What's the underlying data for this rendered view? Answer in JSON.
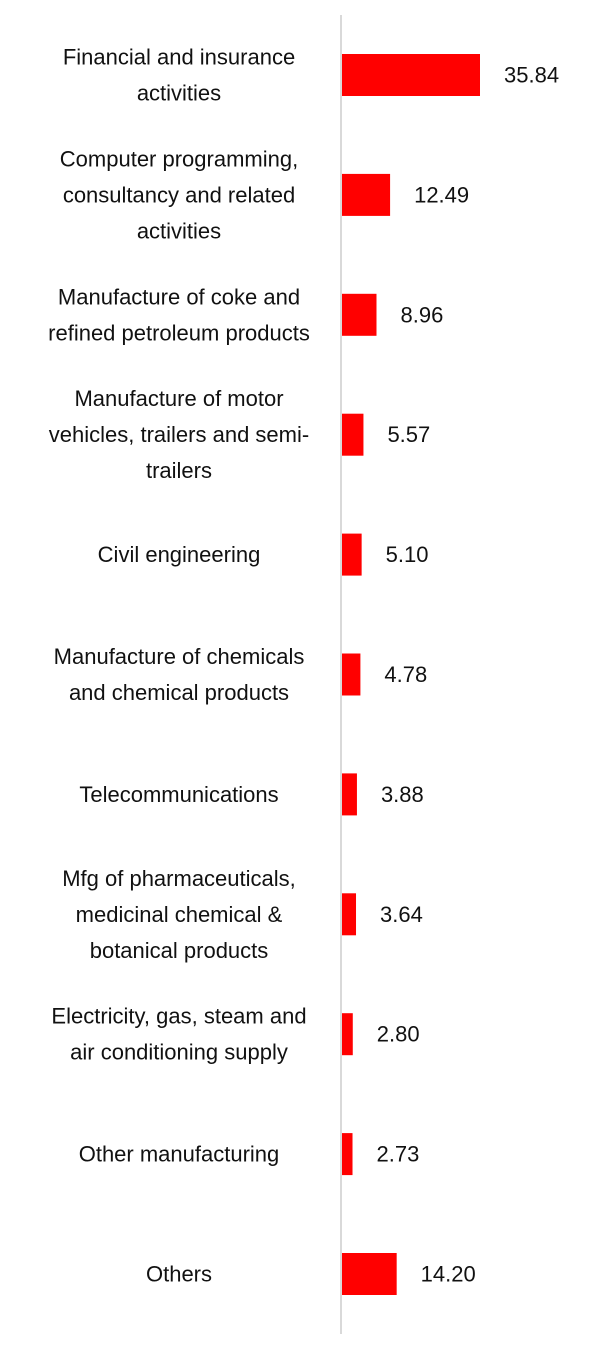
{
  "chart_data": {
    "type": "bar",
    "orientation": "horizontal",
    "categories": [
      "Financial and insurance activities",
      "Computer programming, consultancy and related activities",
      "Manufacture of coke and refined petroleum products",
      "Manufacture of motor vehicles, trailers and semi-trailers",
      "Civil engineering",
      "Manufacture of chemicals and chemical products",
      "Telecommunications",
      "Mfg of pharmaceuticals, medicinal chemical & botanical products",
      "Electricity, gas, steam and air conditioning supply",
      "Other manufacturing",
      "Others"
    ],
    "category_label_lines": [
      [
        "Financial and insurance",
        "activities"
      ],
      [
        "Computer programming,",
        "consultancy and related",
        "activities"
      ],
      [
        "Manufacture of coke and",
        "refined petroleum products"
      ],
      [
        "Manufacture of motor",
        "vehicles, trailers and semi-",
        "trailers"
      ],
      [
        "Civil engineering"
      ],
      [
        "Manufacture of chemicals",
        "and chemical products"
      ],
      [
        "Telecommunications"
      ],
      [
        "Mfg of pharmaceuticals,",
        "medicinal chemical &",
        "botanical products"
      ],
      [
        "Electricity, gas, steam and",
        "air conditioning supply"
      ],
      [
        "Other manufacturing"
      ],
      [
        "Others"
      ]
    ],
    "values": [
      35.84,
      12.49,
      8.96,
      5.57,
      5.1,
      4.78,
      3.88,
      3.64,
      2.8,
      2.73,
      14.2
    ],
    "value_labels": [
      "35.84",
      "12.49",
      "8.96",
      "5.57",
      "5.10",
      "4.78",
      "3.88",
      "3.64",
      "2.80",
      "2.73",
      "14.20"
    ],
    "title": "",
    "xlabel": "",
    "ylabel": "",
    "xlim": [
      0,
      36
    ],
    "grid": false,
    "legend": "none",
    "colors": {
      "bar": "#ff0000",
      "axis": "#d9d9d9",
      "text": "#111111"
    }
  }
}
